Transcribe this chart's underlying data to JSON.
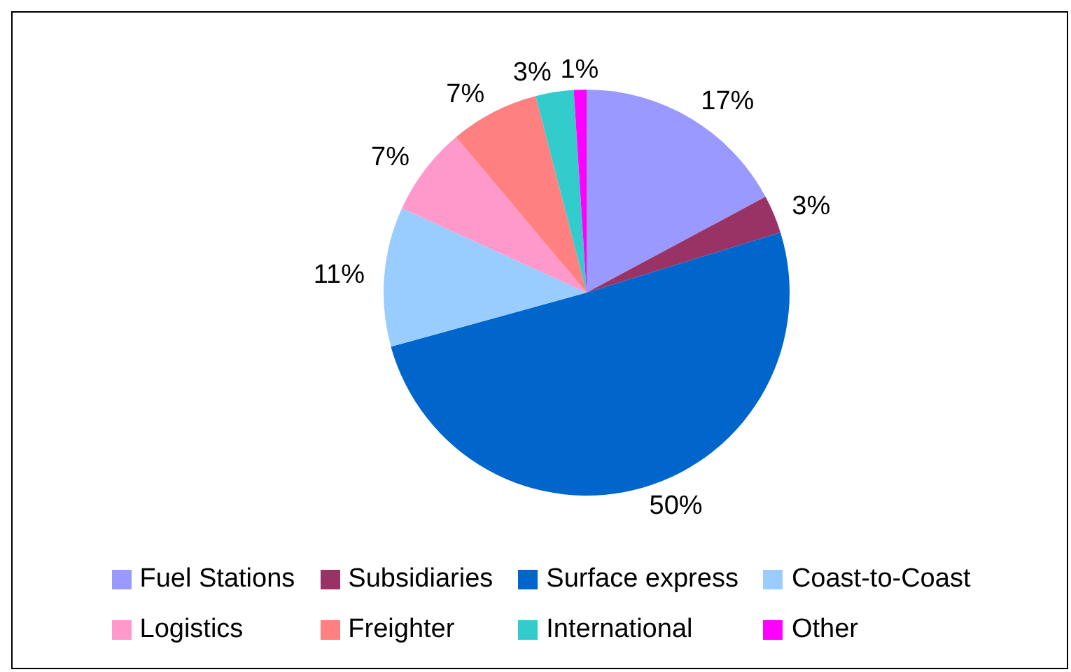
{
  "chart_data": {
    "type": "pie",
    "categories": [
      "Fuel Stations",
      "Subsidiaries",
      "Surface express",
      "Coast-to-Coast",
      "Logistics",
      "Freighter",
      "International",
      "Other"
    ],
    "values": [
      17,
      3,
      50,
      11,
      7,
      7,
      3,
      1
    ],
    "value_labels": [
      "17%",
      "3%",
      "50%",
      "11%",
      "7%",
      "7%",
      "3%",
      "1%"
    ],
    "colors": [
      "#9999ff",
      "#993366",
      "#0066cc",
      "#99ccff",
      "#ff99cc",
      "#ff8080",
      "#33cccc",
      "#ff00ff"
    ],
    "legend": "bottom"
  }
}
